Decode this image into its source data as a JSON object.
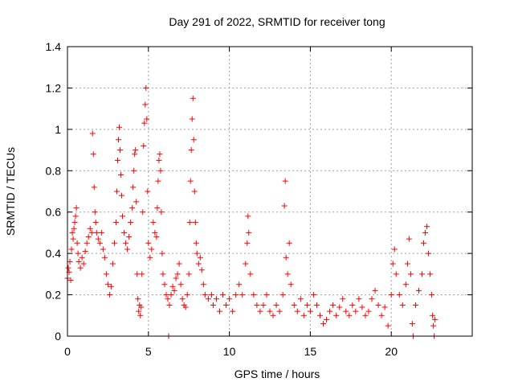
{
  "chart_data": {
    "type": "scatter",
    "title": "Day 291 of 2022, SRMTID for receiver tong",
    "xlabel": "GPS time / hours",
    "ylabel": "SRMTID / TECUs",
    "xlim": [
      0,
      25
    ],
    "ylim": [
      0,
      1.4
    ],
    "x_ticks": [
      0,
      5,
      10,
      15,
      20
    ],
    "x_tick_labels": [
      "0",
      "5",
      "10",
      "15",
      "20"
    ],
    "y_ticks": [
      0,
      0.2,
      0.4,
      0.6,
      0.8,
      1.0,
      1.2,
      1.4
    ],
    "y_tick_labels": [
      "0",
      "0.2",
      "0.4",
      "0.6",
      "0.8",
      "1",
      "1.2",
      "1.4"
    ],
    "grid": true,
    "marker": "+",
    "color": "#ff0000",
    "series": [
      {
        "name": "SRMTID",
        "points": [
          [
            0.0,
            0.28
          ],
          [
            0.05,
            0.33
          ],
          [
            0.1,
            0.31
          ],
          [
            0.15,
            0.36
          ],
          [
            0.2,
            0.27
          ],
          [
            0.25,
            0.42
          ],
          [
            0.3,
            0.5
          ],
          [
            0.35,
            0.47
          ],
          [
            0.4,
            0.52
          ],
          [
            0.45,
            0.55
          ],
          [
            0.5,
            0.58
          ],
          [
            0.55,
            0.62
          ],
          [
            0.6,
            0.45
          ],
          [
            0.65,
            0.4
          ],
          [
            0.7,
            0.36
          ],
          [
            0.8,
            0.33
          ],
          [
            0.9,
            0.38
          ],
          [
            1.0,
            0.35
          ],
          [
            1.1,
            0.41
          ],
          [
            1.2,
            0.45
          ],
          [
            1.3,
            0.48
          ],
          [
            1.4,
            0.52
          ],
          [
            1.5,
            0.5
          ],
          [
            1.55,
            0.98
          ],
          [
            1.6,
            0.88
          ],
          [
            1.65,
            0.72
          ],
          [
            1.7,
            0.6
          ],
          [
            1.75,
            0.55
          ],
          [
            1.8,
            0.5
          ],
          [
            1.9,
            0.47
          ],
          [
            2.0,
            0.45
          ],
          [
            2.1,
            0.5
          ],
          [
            2.2,
            0.42
          ],
          [
            2.3,
            0.38
          ],
          [
            2.4,
            0.3
          ],
          [
            2.5,
            0.25
          ],
          [
            2.6,
            0.2
          ],
          [
            2.7,
            0.24
          ],
          [
            2.8,
            0.35
          ],
          [
            2.9,
            0.45
          ],
          [
            3.0,
            0.55
          ],
          [
            3.05,
            0.7
          ],
          [
            3.1,
            0.85
          ],
          [
            3.15,
            0.95
          ],
          [
            3.2,
            1.01
          ],
          [
            3.25,
            0.9
          ],
          [
            3.3,
            0.78
          ],
          [
            3.35,
            0.68
          ],
          [
            3.4,
            0.58
          ],
          [
            3.5,
            0.5
          ],
          [
            3.6,
            0.45
          ],
          [
            3.7,
            0.42
          ],
          [
            3.8,
            0.48
          ],
          [
            3.9,
            0.55
          ],
          [
            4.0,
            0.62
          ],
          [
            4.05,
            0.72
          ],
          [
            4.1,
            0.8
          ],
          [
            4.15,
            0.88
          ],
          [
            4.2,
            0.9
          ],
          [
            4.25,
            0.65
          ],
          [
            4.3,
            0.3
          ],
          [
            4.35,
            0.18
          ],
          [
            4.4,
            0.12
          ],
          [
            4.45,
            0.15
          ],
          [
            4.5,
            0.1
          ],
          [
            4.55,
            0.14
          ],
          [
            4.6,
            0.3
          ],
          [
            4.65,
            0.6
          ],
          [
            4.7,
            0.92
          ],
          [
            4.75,
            1.03
          ],
          [
            4.8,
            1.12
          ],
          [
            4.85,
            1.2
          ],
          [
            4.9,
            1.05
          ],
          [
            4.95,
            0.7
          ],
          [
            5.0,
            0.45
          ],
          [
            5.1,
            0.38
          ],
          [
            5.2,
            0.42
          ],
          [
            5.3,
            0.55
          ],
          [
            5.4,
            0.5
          ],
          [
            5.5,
            0.48
          ],
          [
            5.55,
            0.62
          ],
          [
            5.6,
            0.75
          ],
          [
            5.65,
            0.85
          ],
          [
            5.7,
            0.88
          ],
          [
            5.75,
            0.8
          ],
          [
            5.8,
            0.6
          ],
          [
            5.85,
            0.4
          ],
          [
            5.9,
            0.3
          ],
          [
            6.0,
            0.25
          ],
          [
            6.1,
            0.2
          ],
          [
            6.2,
            0.18
          ],
          [
            6.25,
            0.0
          ],
          [
            6.3,
            0.15
          ],
          [
            6.4,
            0.2
          ],
          [
            6.5,
            0.24
          ],
          [
            6.6,
            0.22
          ],
          [
            6.7,
            0.28
          ],
          [
            6.8,
            0.3
          ],
          [
            6.9,
            0.35
          ],
          [
            7.0,
            0.25
          ],
          [
            7.1,
            0.18
          ],
          [
            7.2,
            0.15
          ],
          [
            7.3,
            0.14
          ],
          [
            7.4,
            0.2
          ],
          [
            7.5,
            0.3
          ],
          [
            7.55,
            0.55
          ],
          [
            7.6,
            0.75
          ],
          [
            7.65,
            0.9
          ],
          [
            7.7,
            1.05
          ],
          [
            7.75,
            1.15
          ],
          [
            7.8,
            0.95
          ],
          [
            7.85,
            0.7
          ],
          [
            7.9,
            0.55
          ],
          [
            7.95,
            0.45
          ],
          [
            8.0,
            0.4
          ],
          [
            8.1,
            0.35
          ],
          [
            8.2,
            0.38
          ],
          [
            8.3,
            0.32
          ],
          [
            8.4,
            0.25
          ],
          [
            8.5,
            0.2
          ],
          [
            8.7,
            0.18
          ],
          [
            8.9,
            0.2
          ],
          [
            9.0,
            0.15
          ],
          [
            9.2,
            0.18
          ],
          [
            9.4,
            0.12
          ],
          [
            9.6,
            0.2
          ],
          [
            9.8,
            0.15
          ],
          [
            10.0,
            0.18
          ],
          [
            10.2,
            0.12
          ],
          [
            10.4,
            0.2
          ],
          [
            10.6,
            0.25
          ],
          [
            10.8,
            0.2
          ],
          [
            11.0,
            0.35
          ],
          [
            11.1,
            0.45
          ],
          [
            11.15,
            0.58
          ],
          [
            11.2,
            0.5
          ],
          [
            11.3,
            0.3
          ],
          [
            11.5,
            0.2
          ],
          [
            11.7,
            0.15
          ],
          [
            11.9,
            0.12
          ],
          [
            12.1,
            0.15
          ],
          [
            12.3,
            0.2
          ],
          [
            12.5,
            0.12
          ],
          [
            12.7,
            0.1
          ],
          [
            12.9,
            0.15
          ],
          [
            13.1,
            0.12
          ],
          [
            13.3,
            0.2
          ],
          [
            13.4,
            0.63
          ],
          [
            13.45,
            0.75
          ],
          [
            13.5,
            0.38
          ],
          [
            13.6,
            0.3
          ],
          [
            13.7,
            0.45
          ],
          [
            13.8,
            0.25
          ],
          [
            14.0,
            0.15
          ],
          [
            14.2,
            0.12
          ],
          [
            14.4,
            0.18
          ],
          [
            14.6,
            0.1
          ],
          [
            14.8,
            0.15
          ],
          [
            15.0,
            0.12
          ],
          [
            15.2,
            0.2
          ],
          [
            15.4,
            0.15
          ],
          [
            15.6,
            0.1
          ],
          [
            15.8,
            0.06
          ],
          [
            16.0,
            0.08
          ],
          [
            16.2,
            0.12
          ],
          [
            16.4,
            0.15
          ],
          [
            16.6,
            0.1
          ],
          [
            16.8,
            0.14
          ],
          [
            17.0,
            0.18
          ],
          [
            17.2,
            0.12
          ],
          [
            17.4,
            0.1
          ],
          [
            17.6,
            0.15
          ],
          [
            17.8,
            0.12
          ],
          [
            18.0,
            0.18
          ],
          [
            18.2,
            0.14
          ],
          [
            18.4,
            0.1
          ],
          [
            18.6,
            0.12
          ],
          [
            18.8,
            0.18
          ],
          [
            19.0,
            0.22
          ],
          [
            19.2,
            0.15
          ],
          [
            19.4,
            0.1
          ],
          [
            19.6,
            0.14
          ],
          [
            19.8,
            0.05
          ],
          [
            20.0,
            0.2
          ],
          [
            20.1,
            0.35
          ],
          [
            20.2,
            0.42
          ],
          [
            20.3,
            0.3
          ],
          [
            20.5,
            0.2
          ],
          [
            20.7,
            0.15
          ],
          [
            20.9,
            0.25
          ],
          [
            21.0,
            0.35
          ],
          [
            21.1,
            0.47
          ],
          [
            21.2,
            0.3
          ],
          [
            21.3,
            0.06
          ],
          [
            21.35,
            0.0
          ],
          [
            21.5,
            0.15
          ],
          [
            21.7,
            0.22
          ],
          [
            21.9,
            0.3
          ],
          [
            22.0,
            0.45
          ],
          [
            22.1,
            0.5
          ],
          [
            22.2,
            0.53
          ],
          [
            22.3,
            0.4
          ],
          [
            22.4,
            0.3
          ],
          [
            22.5,
            0.2
          ],
          [
            22.55,
            0.1
          ],
          [
            22.6,
            0.05
          ],
          [
            22.65,
            0.0
          ],
          [
            22.7,
            0.08
          ]
        ]
      }
    ]
  }
}
